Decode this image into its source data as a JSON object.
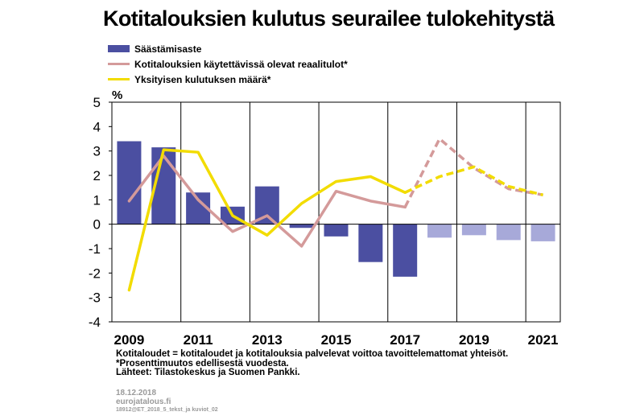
{
  "chart_data": {
    "type": "bar",
    "title": "Kotitalouksien kulutus seurailee tulokehitystä",
    "ylabel": "%",
    "ylim": [
      -4,
      5
    ],
    "yticks": [
      -4,
      -3,
      -2,
      -1,
      0,
      1,
      2,
      3,
      4,
      5
    ],
    "x": [
      2009,
      2010,
      2011,
      2012,
      2013,
      2014,
      2015,
      2016,
      2017,
      2018,
      2019,
      2020,
      2021
    ],
    "xtick_labels": [
      "2009",
      "2011",
      "2013",
      "2015",
      "2017",
      "2019",
      "2021"
    ],
    "forecast_from": 2018,
    "grid": "vertical",
    "legend_position": "top-left",
    "series": [
      {
        "name": "Säästämisaste",
        "kind": "bar",
        "color": "#4b4fa1",
        "forecast_color": "#a7a9d9",
        "values": [
          3.4,
          3.15,
          1.3,
          0.72,
          1.55,
          -0.15,
          -0.5,
          -1.55,
          -2.15,
          -0.55,
          -0.45,
          -0.65,
          -0.7
        ]
      },
      {
        "name": "Kotitalouksien käytettävissä olevat reaalitulot*",
        "kind": "line",
        "color": "#d49a9a",
        "values": [
          0.95,
          2.8,
          1.0,
          -0.3,
          0.35,
          -0.9,
          1.35,
          0.95,
          0.7,
          3.5,
          2.3,
          1.45,
          1.2
        ]
      },
      {
        "name": "Yksityisen kulutuksen määrä*",
        "kind": "line",
        "color": "#f2dc00",
        "values": [
          -2.7,
          3.05,
          2.95,
          0.35,
          -0.45,
          0.85,
          1.75,
          1.95,
          1.3,
          1.95,
          2.35,
          1.55,
          1.2
        ]
      }
    ]
  },
  "footnotes": [
    "Kotitaloudet = kotitaloudet ja kotitalouksia palvelevat voittoa tavoittelemattomat yhteisöt.",
    "*Prosenttimuutos edellisestä vuodesta.",
    "Lähteet: Tilastokeskus ja Suomen Pankki."
  ],
  "meta": {
    "date": "18.12.2018",
    "site": "eurojatalous.fi",
    "code": "18912@ET_2018_5_tekst_ja kuviot_02"
  }
}
